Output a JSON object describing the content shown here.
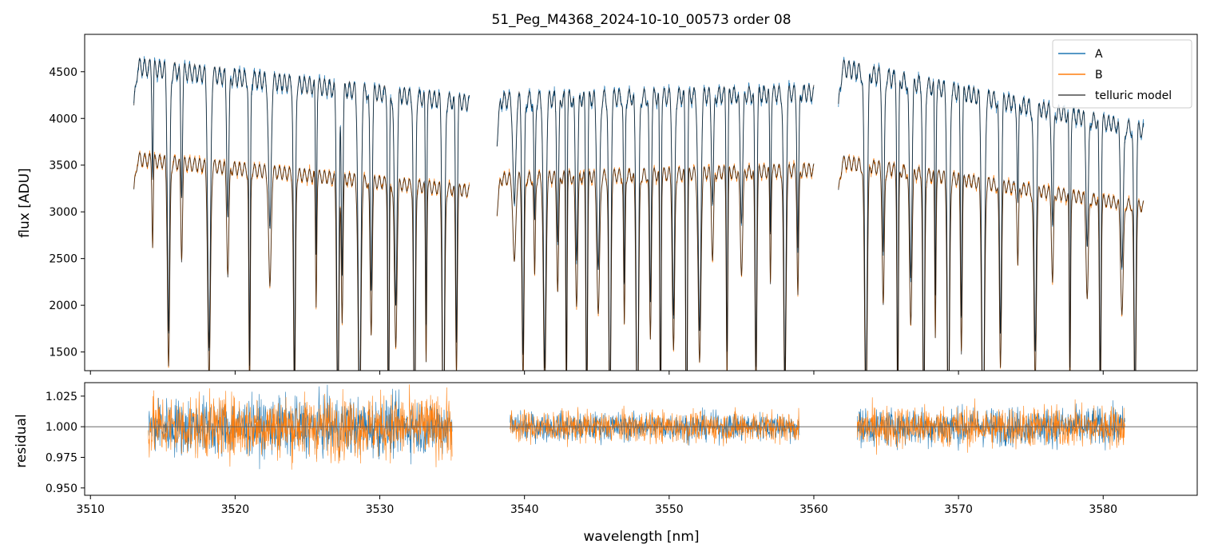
{
  "chart_data": [
    {
      "type": "line",
      "panel": "flux",
      "title": "51_Peg_M4368_2024-10-10_00573  order 08",
      "xlabel": "",
      "ylabel": "flux [ADU]",
      "xlim": [
        3509.6,
        3586.5
      ],
      "ylim": [
        1300,
        4900
      ],
      "yticks": [
        1500,
        2000,
        2500,
        3000,
        3500,
        4000,
        4500
      ],
      "ytick_labels": [
        "1500",
        "2000",
        "2500",
        "3000",
        "3500",
        "4000",
        "4500"
      ],
      "legend": {
        "placement": "top-right",
        "entries": [
          "A",
          "B",
          "telluric model"
        ]
      },
      "segments": [
        {
          "x_start": 3513.0,
          "x_end": 3536.2,
          "A_continuum_start": 4650,
          "A_continuum_end": 4250,
          "B_continuum_start": 3640,
          "B_continuum_end": 3290
        },
        {
          "x_start": 3538.1,
          "x_end": 3560.0,
          "A_continuum_start": 4280,
          "A_continuum_end": 4360,
          "B_continuum_start": 3420,
          "B_continuum_end": 3520
        },
        {
          "x_start": 3561.7,
          "x_end": 3582.8,
          "A_continuum_start": 4640,
          "A_continuum_end": 3950,
          "B_continuum_start": 3610,
          "B_continuum_end": 3120
        }
      ],
      "series": [
        {
          "name": "A",
          "color": "#1f77b4"
        },
        {
          "name": "B",
          "color": "#ff7f0e"
        },
        {
          "name": "telluric model",
          "color": "#000000"
        }
      ],
      "absorption_lines_nm": [
        3514.3,
        3515.4,
        3516.3,
        3518.2,
        3519.5,
        3521.0,
        3522.4,
        3524.1,
        3525.6,
        3527.1,
        3527.4,
        3528.6,
        3529.4,
        3530.6,
        3531.1,
        3532.4,
        3533.2,
        3534.4,
        3535.3,
        3539.3,
        3539.9,
        3540.7,
        3541.4,
        3542.3,
        3542.9,
        3543.6,
        3544.3,
        3545.1,
        3545.9,
        3546.9,
        3547.8,
        3548.7,
        3549.4,
        3550.3,
        3551.2,
        3552.1,
        3553.0,
        3554.0,
        3555.0,
        3556.0,
        3557.0,
        3558.0,
        3558.9,
        3563.6,
        3564.8,
        3565.8,
        3566.7,
        3567.6,
        3568.4,
        3569.3,
        3570.2,
        3571.7,
        3572.9,
        3574.1,
        3575.3,
        3576.5,
        3577.7,
        3578.9,
        3579.8,
        3581.3,
        3582.2
      ]
    },
    {
      "type": "line",
      "panel": "residual",
      "xlabel": "wavelength [nm]",
      "ylabel": "residual",
      "xlim": [
        3509.6,
        3586.5
      ],
      "ylim": [
        0.944,
        1.036
      ],
      "yticks": [
        0.95,
        0.975,
        1.0,
        1.025
      ],
      "ytick_labels": [
        "0.950",
        "0.975",
        "1.000",
        "1.025"
      ],
      "xticks": [
        3510,
        3520,
        3530,
        3540,
        3550,
        3560,
        3570,
        3580
      ],
      "xtick_labels": [
        "3510",
        "3520",
        "3530",
        "3540",
        "3550",
        "3560",
        "3570",
        "3580"
      ],
      "reference_line": 1.0,
      "segments": [
        {
          "x_start": 3514.0,
          "x_end": 3535.0,
          "scatter": 0.024
        },
        {
          "x_start": 3539.0,
          "x_end": 3559.0,
          "scatter": 0.012
        },
        {
          "x_start": 3563.0,
          "x_end": 3581.5,
          "scatter": 0.016
        }
      ],
      "series": [
        {
          "name": "A",
          "color": "#1f77b4"
        },
        {
          "name": "B",
          "color": "#ff7f0e"
        }
      ]
    }
  ]
}
